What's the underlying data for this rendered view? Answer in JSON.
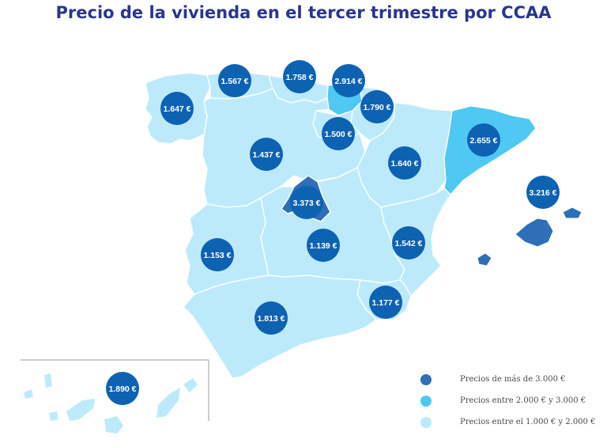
{
  "title": "Precio de la vivienda en el tercer trimestre por CCAA",
  "colors": {
    "low": "#bdeafb",
    "mid": "#4fc8f3",
    "high": "#2e6fb8",
    "bubble": "#0e62b2",
    "border": "#ffffff",
    "inset_frame": "#9a9a9a"
  },
  "regions": [
    {
      "id": "galicia",
      "price": "1.647 €",
      "tier": "low"
    },
    {
      "id": "asturias",
      "price": "1.567 €",
      "tier": "low"
    },
    {
      "id": "cantabria",
      "price": "1.758 €",
      "tier": "low"
    },
    {
      "id": "pais-vasco",
      "price": "2.914 €",
      "tier": "mid"
    },
    {
      "id": "navarra",
      "price": "1.790 €",
      "tier": "low"
    },
    {
      "id": "la-rioja",
      "price": "1.500 €",
      "tier": "low"
    },
    {
      "id": "castilla-y-leon",
      "price": "1.437 €",
      "tier": "low"
    },
    {
      "id": "aragon",
      "price": "1.640 €",
      "tier": "low"
    },
    {
      "id": "cataluna",
      "price": "2.655 €",
      "tier": "mid"
    },
    {
      "id": "baleares",
      "price": "3.216 €",
      "tier": "high"
    },
    {
      "id": "madrid",
      "price": "3.373 €",
      "tier": "high"
    },
    {
      "id": "castilla-la-mancha",
      "price": "1.139 €",
      "tier": "low"
    },
    {
      "id": "extremadura",
      "price": "1.153 €",
      "tier": "low"
    },
    {
      "id": "comunidad-valenciana",
      "price": "1.542 €",
      "tier": "low"
    },
    {
      "id": "murcia",
      "price": "1.177 €",
      "tier": "low"
    },
    {
      "id": "andalucia",
      "price": "1.813 €",
      "tier": "low"
    },
    {
      "id": "canarias",
      "price": "1.890 €",
      "tier": "low"
    }
  ],
  "legend": [
    {
      "label": "Precios de más de 3.000 €",
      "tier": "high"
    },
    {
      "label": "Precios entre 2.000 € y 3.000 €",
      "tier": "mid"
    },
    {
      "label": "Precios entre el 1.000 € y 2.000 €",
      "tier": "low"
    }
  ]
}
